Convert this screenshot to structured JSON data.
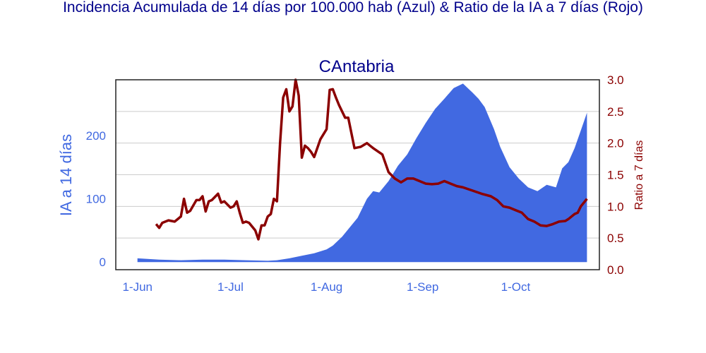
{
  "chart_data": {
    "type": "area+line",
    "title": "Incidencia Acumulada de 14 días por 100.000 hab (Azul) & Ratio de la IA a 7 días (Rojo)",
    "subtitle": "CAntabria",
    "y1label": "IA a 14 días",
    "y2label": "Ratio a 7 días",
    "x_ticks": [
      "1-Jun",
      "1-Jul",
      "1-Aug",
      "1-Sep",
      "1-Oct"
    ],
    "y1_ticks": [
      "0",
      "100",
      "200"
    ],
    "y2_ticks": [
      "0.0",
      "0.5",
      "1.0",
      "1.5",
      "2.0",
      "2.5",
      "3.0"
    ],
    "y1lim": [
      -12,
      288
    ],
    "y2lim": [
      0,
      3
    ],
    "grid": true,
    "colors": {
      "area": "#4169e1",
      "line": "#8b0000",
      "title": "#00008b"
    },
    "series": [
      {
        "name": "IA a 14 días",
        "kind": "area",
        "x": [
          "2020-06-01",
          "2020-06-08",
          "2020-06-15",
          "2020-06-22",
          "2020-06-29",
          "2020-07-06",
          "2020-07-13",
          "2020-07-16",
          "2020-07-20",
          "2020-07-24",
          "2020-07-28",
          "2020-08-01",
          "2020-08-03",
          "2020-08-06",
          "2020-08-08",
          "2020-08-11",
          "2020-08-14",
          "2020-08-16",
          "2020-08-18",
          "2020-08-21",
          "2020-08-24",
          "2020-08-27",
          "2020-08-30",
          "2020-09-02",
          "2020-09-05",
          "2020-09-08",
          "2020-09-11",
          "2020-09-14",
          "2020-09-17",
          "2020-09-19",
          "2020-09-21",
          "2020-09-24",
          "2020-09-26",
          "2020-09-29",
          "2020-10-02",
          "2020-10-05",
          "2020-10-08",
          "2020-10-11",
          "2020-10-14",
          "2020-10-16",
          "2020-10-18",
          "2020-10-20",
          "2020-10-22",
          "2020-10-24"
        ],
        "y": [
          6,
          4,
          3,
          4,
          4,
          3,
          2,
          3,
          6,
          10,
          14,
          20,
          26,
          40,
          52,
          70,
          100,
          112,
          110,
          128,
          152,
          170,
          196,
          220,
          242,
          258,
          275,
          282,
          268,
          258,
          245,
          210,
          182,
          150,
          132,
          118,
          112,
          122,
          118,
          148,
          158,
          180,
          208,
          236
        ]
      },
      {
        "name": "Ratio a 7 días",
        "kind": "line",
        "x": [
          "2020-06-07",
          "2020-06-08",
          "2020-06-09",
          "2020-06-11",
          "2020-06-13",
          "2020-06-15",
          "2020-06-16",
          "2020-06-17",
          "2020-06-18",
          "2020-06-20",
          "2020-06-21",
          "2020-06-22",
          "2020-06-23",
          "2020-06-24",
          "2020-06-25",
          "2020-06-27",
          "2020-06-28",
          "2020-06-29",
          "2020-07-01",
          "2020-07-02",
          "2020-07-03",
          "2020-07-04",
          "2020-07-05",
          "2020-07-06",
          "2020-07-07",
          "2020-07-09",
          "2020-07-10",
          "2020-07-11",
          "2020-07-12",
          "2020-07-13",
          "2020-07-14",
          "2020-07-15",
          "2020-07-16",
          "2020-07-17",
          "2020-07-18",
          "2020-07-19",
          "2020-07-20",
          "2020-07-21",
          "2020-07-22",
          "2020-07-23",
          "2020-07-24",
          "2020-07-25",
          "2020-07-26",
          "2020-07-27",
          "2020-07-28",
          "2020-07-30",
          "2020-08-01",
          "2020-08-02",
          "2020-08-03",
          "2020-08-04",
          "2020-08-05",
          "2020-08-07",
          "2020-08-08",
          "2020-08-10",
          "2020-08-12",
          "2020-08-14",
          "2020-08-15",
          "2020-08-16",
          "2020-08-19",
          "2020-08-21",
          "2020-08-23",
          "2020-08-25",
          "2020-08-27",
          "2020-08-29",
          "2020-09-02",
          "2020-09-04",
          "2020-09-06",
          "2020-09-08",
          "2020-09-10",
          "2020-09-12",
          "2020-09-14",
          "2020-09-17",
          "2020-09-20",
          "2020-09-23",
          "2020-09-25",
          "2020-09-27",
          "2020-09-29",
          "2020-10-01",
          "2020-10-03",
          "2020-10-05",
          "2020-10-07",
          "2020-10-09",
          "2020-10-11",
          "2020-10-13",
          "2020-10-15",
          "2020-10-17",
          "2020-10-18",
          "2020-10-19",
          "2020-10-20",
          "2020-10-21",
          "2020-10-22",
          "2020-10-24"
        ],
        "y": [
          0.72,
          0.66,
          0.74,
          0.78,
          0.76,
          0.84,
          1.12,
          0.9,
          0.93,
          1.1,
          1.1,
          1.16,
          0.92,
          1.08,
          1.1,
          1.2,
          1.06,
          1.08,
          0.98,
          1.0,
          1.08,
          0.9,
          0.74,
          0.76,
          0.74,
          0.62,
          0.48,
          0.7,
          0.7,
          0.84,
          0.88,
          1.12,
          1.08,
          2.0,
          2.72,
          2.85,
          2.5,
          2.58,
          3.0,
          2.75,
          1.77,
          1.96,
          1.92,
          1.86,
          1.78,
          2.06,
          2.22,
          2.84,
          2.85,
          2.72,
          2.6,
          2.4,
          2.4,
          1.92,
          1.94,
          2.0,
          1.96,
          1.92,
          1.82,
          1.54,
          1.44,
          1.38,
          1.44,
          1.44,
          1.36,
          1.35,
          1.36,
          1.4,
          1.36,
          1.32,
          1.3,
          1.25,
          1.2,
          1.16,
          1.1,
          1.0,
          0.98,
          0.94,
          0.9,
          0.8,
          0.76,
          0.7,
          0.69,
          0.72,
          0.76,
          0.77,
          0.8,
          0.84,
          0.88,
          0.9,
          1.0,
          1.12
        ]
      }
    ]
  }
}
